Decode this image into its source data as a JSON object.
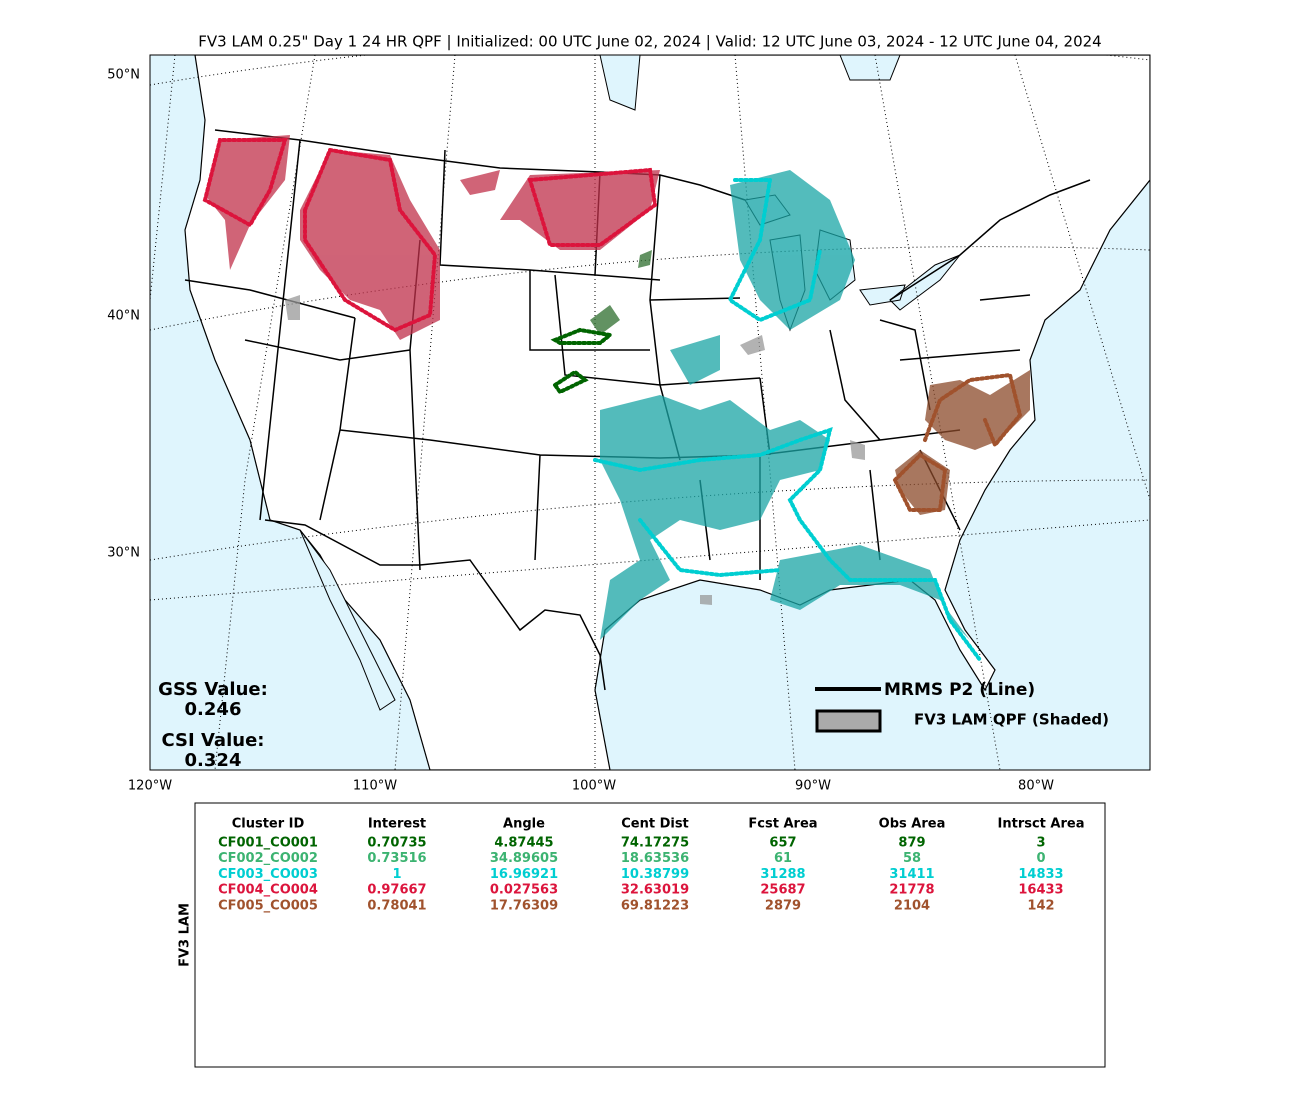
{
  "title": "FV3 LAM 0.25\" Day 1 24 HR QPF | Initialized: 00 UTC June 02, 2024 | Valid: 12 UTC June 03, 2024 - 12 UTC June 04, 2024",
  "map": {
    "lat_labels": [
      "50°N",
      "40°N",
      "30°N"
    ],
    "lon_labels": [
      "120°W",
      "110°W",
      "100°W",
      "90°W",
      "80°W"
    ],
    "stats": {
      "gss_label": "GSS Value:",
      "gss_value": "0.246",
      "csi_label": "CSI Value:",
      "csi_value": "0.324"
    },
    "legend": {
      "line": "MRMS P2 (Line)",
      "shaded": "FV3 LAM QPF (Shaded)"
    }
  },
  "table": {
    "side_label": "FV3 LAM",
    "header": [
      "Cluster ID",
      "Interest",
      "Angle",
      "Cent Dist",
      "Fcst Area",
      "Obs Area",
      "Intrsct Area"
    ],
    "rows": [
      [
        "CF001_CO001",
        "0.70735",
        "4.87445",
        "74.17275",
        "657",
        "879",
        "3"
      ],
      [
        "CF002_CO002",
        "0.73516",
        "34.89605",
        "18.63536",
        "61",
        "58",
        "0"
      ],
      [
        "CF003_CO003",
        "1",
        "16.96921",
        "10.38799",
        "31288",
        "31411",
        "14833"
      ],
      [
        "CF004_CO004",
        "0.97667",
        "0.027563",
        "32.63019",
        "25687",
        "21778",
        "16433"
      ],
      [
        "CF005_CO005",
        "0.78041",
        "17.76309",
        "69.81223",
        "2879",
        "2104",
        "142"
      ]
    ],
    "row_colors": [
      "#006400",
      "#3cb371",
      "#00ced1",
      "#dc143c",
      "#a0522d"
    ]
  }
}
